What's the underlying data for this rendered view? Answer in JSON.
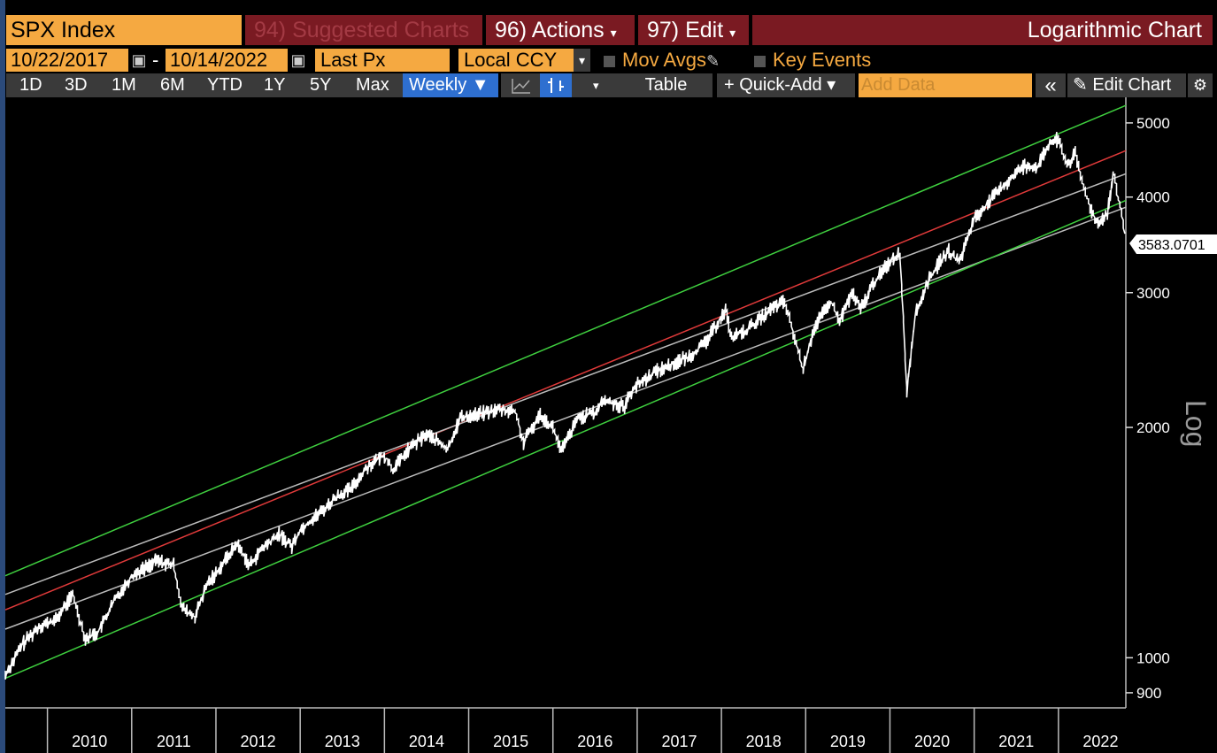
{
  "toolbar": {
    "ticker": "SPX Index",
    "suggested": "94) Suggested Charts",
    "actions": "96) Actions",
    "actions_caret": "▾",
    "edit": "97) Edit",
    "edit_caret": "▾",
    "chart_title": "Logarithmic Chart",
    "start_date": "10/22/2017",
    "dash": "-",
    "end_date": "10/14/2022",
    "field": "Last Px",
    "currency": "Local CCY",
    "dropdown_caret": "▾",
    "mov_avgs": "Mov Avgs",
    "key_events": "Key Events",
    "periods": [
      "1D",
      "3D",
      "1M",
      "6M",
      "YTD",
      "1Y",
      "5Y",
      "Max"
    ],
    "frequency": "Weekly ▼",
    "table": "Table",
    "quick_add": "+ Quick-Add ▾",
    "add_data_placeholder": "Add Data",
    "collapse": "«",
    "edit_chart": "✎ Edit Chart",
    "settings_icon": "gear-icon",
    "calendar_icon": "calendar-icon",
    "line_icon": "line-chart-icon",
    "bar_icon": "bar-chart-icon"
  },
  "chart_data": {
    "type": "line",
    "scale": "log",
    "axis_label": "Log",
    "x_labels": [
      "2010",
      "2011",
      "2012",
      "2013",
      "2014",
      "2015",
      "2016",
      "2017",
      "2018",
      "2019",
      "2020",
      "2021",
      "2022"
    ],
    "y_ticks": [
      900,
      1000,
      2000,
      3000,
      4000,
      5000
    ],
    "ylim": [
      860,
      5400
    ],
    "xlim": [
      2009.5,
      2022.8
    ],
    "last_value": "3583.0701",
    "series": [
      {
        "color": "#ffffff",
        "points": [
          [
            2009.5,
            950
          ],
          [
            2009.7,
            1040
          ],
          [
            2009.9,
            1100
          ],
          [
            2010.1,
            1120
          ],
          [
            2010.3,
            1210
          ],
          [
            2010.45,
            1060
          ],
          [
            2010.6,
            1080
          ],
          [
            2010.8,
            1190
          ],
          [
            2011.0,
            1280
          ],
          [
            2011.3,
            1340
          ],
          [
            2011.5,
            1320
          ],
          [
            2011.6,
            1160
          ],
          [
            2011.75,
            1130
          ],
          [
            2011.9,
            1250
          ],
          [
            2012.0,
            1290
          ],
          [
            2012.25,
            1410
          ],
          [
            2012.4,
            1320
          ],
          [
            2012.55,
            1390
          ],
          [
            2012.75,
            1450
          ],
          [
            2012.9,
            1400
          ],
          [
            2013.0,
            1470
          ],
          [
            2013.3,
            1570
          ],
          [
            2013.45,
            1630
          ],
          [
            2013.6,
            1660
          ],
          [
            2013.8,
            1780
          ],
          [
            2014.0,
            1840
          ],
          [
            2014.1,
            1760
          ],
          [
            2014.3,
            1880
          ],
          [
            2014.5,
            1960
          ],
          [
            2014.6,
            1930
          ],
          [
            2014.75,
            1870
          ],
          [
            2014.9,
            2060
          ],
          [
            2015.1,
            2080
          ],
          [
            2015.35,
            2110
          ],
          [
            2015.55,
            2100
          ],
          [
            2015.65,
            1910
          ],
          [
            2015.85,
            2080
          ],
          [
            2016.0,
            2000
          ],
          [
            2016.1,
            1860
          ],
          [
            2016.3,
            2060
          ],
          [
            2016.5,
            2090
          ],
          [
            2016.6,
            2170
          ],
          [
            2016.85,
            2130
          ],
          [
            2016.95,
            2250
          ],
          [
            2017.2,
            2360
          ],
          [
            2017.45,
            2430
          ],
          [
            2017.6,
            2470
          ],
          [
            2017.8,
            2570
          ],
          [
            2018.05,
            2850
          ],
          [
            2018.12,
            2620
          ],
          [
            2018.3,
            2680
          ],
          [
            2018.6,
            2860
          ],
          [
            2018.75,
            2920
          ],
          [
            2018.85,
            2660
          ],
          [
            2018.97,
            2380
          ],
          [
            2019.1,
            2700
          ],
          [
            2019.3,
            2920
          ],
          [
            2019.4,
            2750
          ],
          [
            2019.55,
            3000
          ],
          [
            2019.65,
            2850
          ],
          [
            2019.8,
            3080
          ],
          [
            2020.0,
            3300
          ],
          [
            2020.12,
            3380
          ],
          [
            2020.2,
            2240
          ],
          [
            2020.3,
            2800
          ],
          [
            2020.45,
            3100
          ],
          [
            2020.6,
            3300
          ],
          [
            2020.7,
            3400
          ],
          [
            2020.82,
            3280
          ],
          [
            2021.0,
            3750
          ],
          [
            2021.2,
            3970
          ],
          [
            2021.45,
            4250
          ],
          [
            2021.6,
            4400
          ],
          [
            2021.75,
            4380
          ],
          [
            2021.9,
            4700
          ],
          [
            2022.0,
            4760
          ],
          [
            2022.1,
            4400
          ],
          [
            2022.2,
            4550
          ],
          [
            2022.3,
            4100
          ],
          [
            2022.45,
            3700
          ],
          [
            2022.58,
            3800
          ],
          [
            2022.65,
            4280
          ],
          [
            2022.75,
            3800
          ],
          [
            2022.79,
            3583
          ]
        ]
      }
    ],
    "channel": {
      "center": {
        "color": "#e03a3a",
        "start": 1155,
        "end": 4600
      },
      "inner_upper": {
        "color": "#bbbbbb",
        "start": 1210,
        "end": 4290
      },
      "inner_lower": {
        "color": "#bbbbbb",
        "start": 1090,
        "end": 3880
      },
      "outer_upper": {
        "color": "#3fcf3f",
        "start": 1280,
        "end": 5270
      },
      "outer_lower": {
        "color": "#3fcf3f",
        "start": 940,
        "end": 3960
      }
    }
  }
}
